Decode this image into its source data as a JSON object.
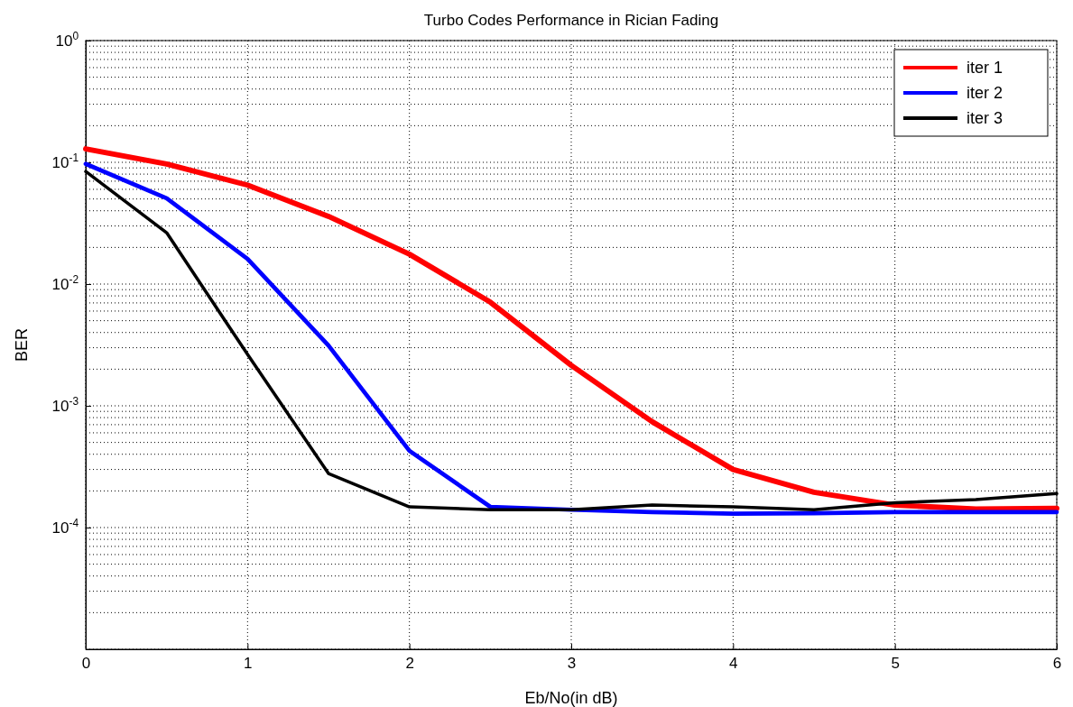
{
  "chart_data": {
    "type": "line",
    "title": "Turbo Codes Performance in Rician Fading",
    "xlabel": "Eb/No(in dB)",
    "ylabel": "BER",
    "x": [
      0,
      0.5,
      1,
      1.5,
      2,
      2.5,
      3,
      3.5,
      4,
      4.5,
      5,
      5.5,
      6
    ],
    "series": [
      {
        "name": "iter 1",
        "color": "#ff0000",
        "values": [
          0.129,
          0.097,
          0.065,
          0.036,
          0.0176,
          0.0071,
          0.00215,
          0.00074,
          0.0003,
          0.000195,
          0.000153,
          0.000142,
          0.000144
        ]
      },
      {
        "name": "iter 2",
        "color": "#0000ff",
        "values": [
          0.097,
          0.0506,
          0.0161,
          0.00313,
          0.000427,
          0.000148,
          0.00014,
          0.000134,
          0.00013,
          0.000131,
          0.000134,
          0.000134,
          0.000134
        ]
      },
      {
        "name": "iter 3",
        "color": "#000000",
        "values": [
          0.084,
          0.0264,
          0.00264,
          0.000278,
          0.000148,
          0.00014,
          0.00014,
          0.000153,
          0.000148,
          0.00014,
          0.00016,
          0.00017,
          0.00019
        ]
      }
    ],
    "xlim": [
      0,
      6
    ],
    "xticks": [
      0,
      1,
      2,
      3,
      4,
      5,
      6
    ],
    "ylim": [
      1e-05,
      1
    ],
    "yticks": [
      {
        "value": 1e-05,
        "label": null
      },
      {
        "value": 0.0001,
        "label": "10$^{-4}$"
      },
      {
        "value": 0.001,
        "label": "10$^{-3}$"
      },
      {
        "value": 0.01,
        "label": "10$^{-2}$"
      },
      {
        "value": 0.1,
        "label": "10$^{-1}$"
      },
      {
        "value": 1,
        "label": "10$^{0}$"
      }
    ],
    "log": "y",
    "grid": true,
    "legend": "top right",
    "line_style": "solid",
    "marker": "none"
  }
}
